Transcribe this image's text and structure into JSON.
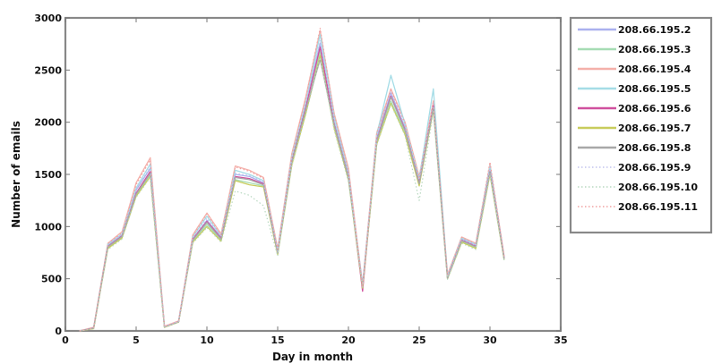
{
  "chart_data": {
    "type": "line",
    "xlabel": "Day in month",
    "ylabel": "Number of emails",
    "xlim": [
      0,
      35
    ],
    "ylim": [
      0,
      3000
    ],
    "xticks": [
      0,
      5,
      10,
      15,
      20,
      25,
      30,
      35
    ],
    "yticks": [
      0,
      500,
      1000,
      1500,
      2000,
      2500,
      3000
    ],
    "grid": false,
    "legend_position": "outside-right",
    "x": [
      1,
      2,
      3,
      4,
      5,
      6,
      7,
      8,
      9,
      10,
      11,
      12,
      13,
      14,
      15,
      16,
      17,
      18,
      19,
      20,
      21,
      22,
      23,
      24,
      25,
      26,
      27,
      28,
      29,
      30,
      31
    ],
    "series": [
      {
        "name": "208.66.195.2",
        "color": "#aab0ee",
        "style": "solid",
        "values": [
          0,
          30,
          820,
          920,
          1350,
          1560,
          40,
          90,
          880,
          1060,
          900,
          1500,
          1480,
          1420,
          760,
          1650,
          2180,
          2760,
          2000,
          1500,
          450,
          1850,
          2280,
          1950,
          1450,
          2180,
          520,
          880,
          820,
          1560,
          700
        ]
      },
      {
        "name": "208.66.195.3",
        "color": "#a6dcb4",
        "style": "solid",
        "values": [
          0,
          25,
          800,
          900,
          1300,
          1500,
          35,
          85,
          860,
          1020,
          870,
          1450,
          1420,
          1390,
          740,
          1600,
          2100,
          2680,
          1950,
          1460,
          420,
          1800,
          2200,
          1900,
          1400,
          2150,
          500,
          860,
          800,
          1520,
          690
        ]
      },
      {
        "name": "208.66.195.4",
        "color": "#f4b0aa",
        "style": "solid",
        "values": [
          0,
          35,
          840,
          950,
          1420,
          1660,
          45,
          95,
          920,
          1130,
          930,
          1580,
          1540,
          1470,
          790,
          1700,
          2250,
          2880,
          2080,
          1560,
          430,
          1900,
          2320,
          2000,
          1480,
          2200,
          540,
          900,
          840,
          1600,
          720
        ]
      },
      {
        "name": "208.66.195.5",
        "color": "#a4dce6",
        "style": "solid",
        "values": [
          0,
          30,
          830,
          930,
          1370,
          1600,
          40,
          90,
          900,
          1100,
          910,
          1540,
          1500,
          1440,
          770,
          1670,
          2200,
          2840,
          2050,
          1520,
          400,
          1880,
          2450,
          1980,
          1460,
          2320,
          530,
          890,
          830,
          1580,
          710
        ]
      },
      {
        "name": "208.66.195.6",
        "color": "#d0509e",
        "style": "solid",
        "values": [
          0,
          28,
          810,
          910,
          1320,
          1530,
          38,
          88,
          880,
          1050,
          890,
          1480,
          1460,
          1410,
          750,
          1630,
          2150,
          2720,
          1980,
          1480,
          380,
          1830,
          2250,
          1930,
          1420,
          2160,
          510,
          870,
          810,
          1540,
          700
        ]
      },
      {
        "name": "208.66.195.7",
        "color": "#c8cc5c",
        "style": "solid",
        "values": [
          0,
          22,
          790,
          890,
          1290,
          1480,
          34,
          84,
          850,
          1000,
          860,
          1440,
          1400,
          1380,
          730,
          1590,
          2090,
          2640,
          1940,
          1450,
          410,
          1790,
          2180,
          1880,
          1390,
          2120,
          500,
          850,
          790,
          1500,
          680
        ]
      },
      {
        "name": "208.66.195.8",
        "color": "#a8a8a8",
        "style": "solid",
        "values": [
          0,
          26,
          805,
          905,
          1310,
          1510,
          37,
          87,
          870,
          1040,
          880,
          1470,
          1450,
          1400,
          745,
          1620,
          2130,
          2600,
          1970,
          1470,
          430,
          1820,
          2240,
          1920,
          1410,
          2140,
          505,
          865,
          805,
          1530,
          690
        ]
      },
      {
        "name": "208.66.195.9",
        "color": "#c2c4ee",
        "style": "dotted",
        "values": [
          0,
          30,
          825,
          925,
          1360,
          1570,
          40,
          92,
          890,
          1080,
          905,
          1510,
          1490,
          1430,
          765,
          1660,
          2190,
          2780,
          2020,
          1510,
          440,
          1860,
          2300,
          1960,
          1450,
          2190,
          520,
          880,
          820,
          1570,
          705
        ]
      },
      {
        "name": "208.66.195.10",
        "color": "#b8d8c0",
        "style": "dotted",
        "values": [
          0,
          24,
          780,
          880,
          1280,
          1470,
          36,
          86,
          840,
          990,
          850,
          1340,
          1300,
          1200,
          720,
          1580,
          2080,
          2620,
          1920,
          1430,
          420,
          1780,
          2170,
          1870,
          1250,
          2100,
          495,
          840,
          780,
          1490,
          675
        ]
      },
      {
        "name": "208.66.195.11",
        "color": "#f0a0a0",
        "style": "dotted",
        "values": [
          0,
          32,
          835,
          940,
          1400,
          1640,
          42,
          94,
          910,
          1120,
          920,
          1570,
          1530,
          1460,
          785,
          1690,
          2240,
          2900,
          2070,
          1550,
          425,
          1890,
          2310,
          1990,
          1470,
          2210,
          535,
          895,
          835,
          1620,
          715
        ]
      }
    ]
  }
}
